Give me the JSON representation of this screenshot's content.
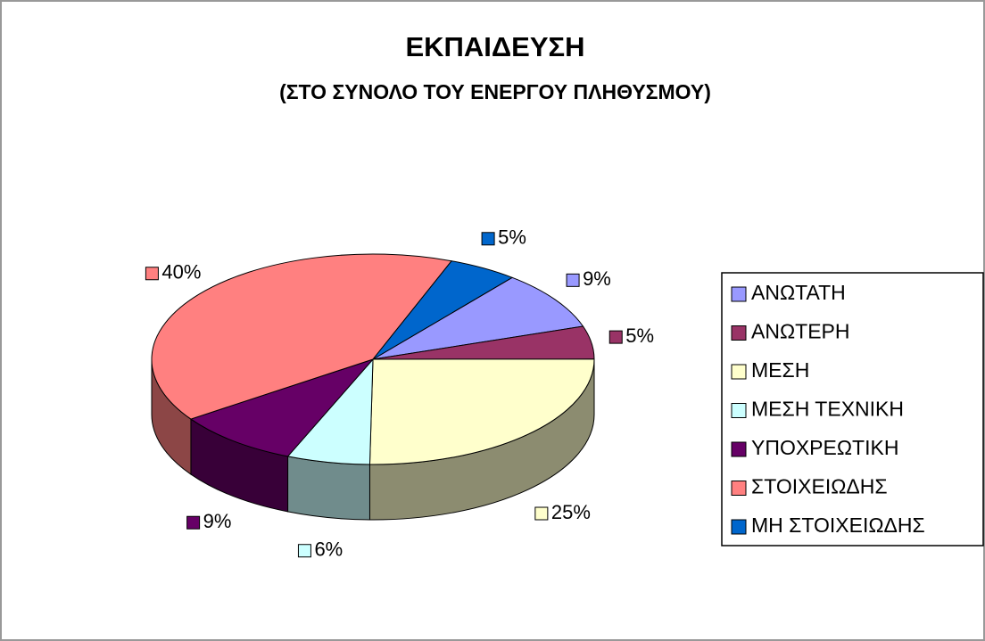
{
  "chart_data": {
    "type": "pie3d",
    "title": "ΕΚΠΑΙΔΕΥΣΗ",
    "subtitle": "(ΣΤΟ ΣΥΝΟΛΟ ΤΟΥ ΕΝΕΡΓΟΥ ΠΛΗΘΥΣΜΟΥ)",
    "categories": [
      "ΑΝΩΤΑΤΗ",
      "ΑΝΩΤΕΡΗ",
      "ΜΕΣΗ",
      "ΜΕΣΗ ΤΕΧΝΙΚΗ",
      "ΥΠΟΧΡΕΩΤΙΚΗ",
      "ΣΤΟΙΧΕΙΩΔΗΣ",
      "ΜΗ ΣΤΟΙΧΕΙΩΔΗΣ"
    ],
    "values": [
      9,
      5,
      25,
      6,
      9,
      40,
      5
    ],
    "value_labels": [
      "9%",
      "5%",
      "25%",
      "6%",
      "9%",
      "40%",
      "5%"
    ],
    "colors": [
      "#9999ff",
      "#993366",
      "#ffffcc",
      "#ccffff",
      "#660066",
      "#ff8080",
      "#0066cc"
    ],
    "legend": "right"
  }
}
